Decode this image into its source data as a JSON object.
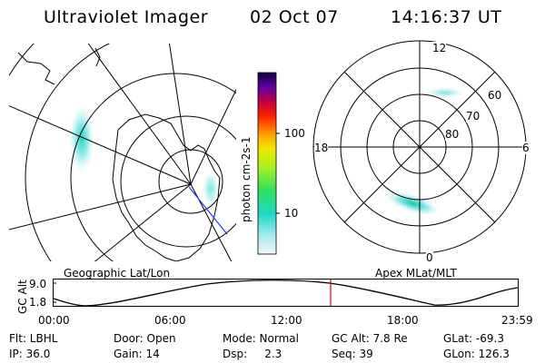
{
  "header": {
    "instrument": "Ultraviolet Imager",
    "date": "02 Oct 07",
    "time": "14:16:37 UT"
  },
  "colorbar": {
    "unit_label": "photon cm-2s-1",
    "ticks": [
      "100",
      "10"
    ],
    "scale": "log"
  },
  "left_panel": {
    "label": "Geographic Lat/Lon"
  },
  "right_panel": {
    "label": "Apex MLat/MLT",
    "lat_labels": [
      "60",
      "70",
      "80"
    ],
    "mlt_labels": [
      "12",
      "18",
      "6",
      "0"
    ]
  },
  "altitude_plot": {
    "ylabel": "GC Alt",
    "yticks": [
      "9.0",
      "1.8"
    ],
    "xticks": [
      "00:00",
      "06:00",
      "12:00",
      "18:00",
      "23:59"
    ],
    "current_time_marker": "14:16",
    "marker_color": "#e00000"
  },
  "status": {
    "filter": "Flt: LBHL",
    "door": "Door: Open",
    "mode": "Mode: Normal",
    "gc_alt": "GC Alt: 7.8 Re",
    "glat": "GLat: -69.3",
    "ip": "IP: 36.0",
    "gain": "Gain: 14",
    "dsp": "Dsp:     2.3",
    "seq": "Seq: 39",
    "glon": "GLon: 126.3"
  }
}
